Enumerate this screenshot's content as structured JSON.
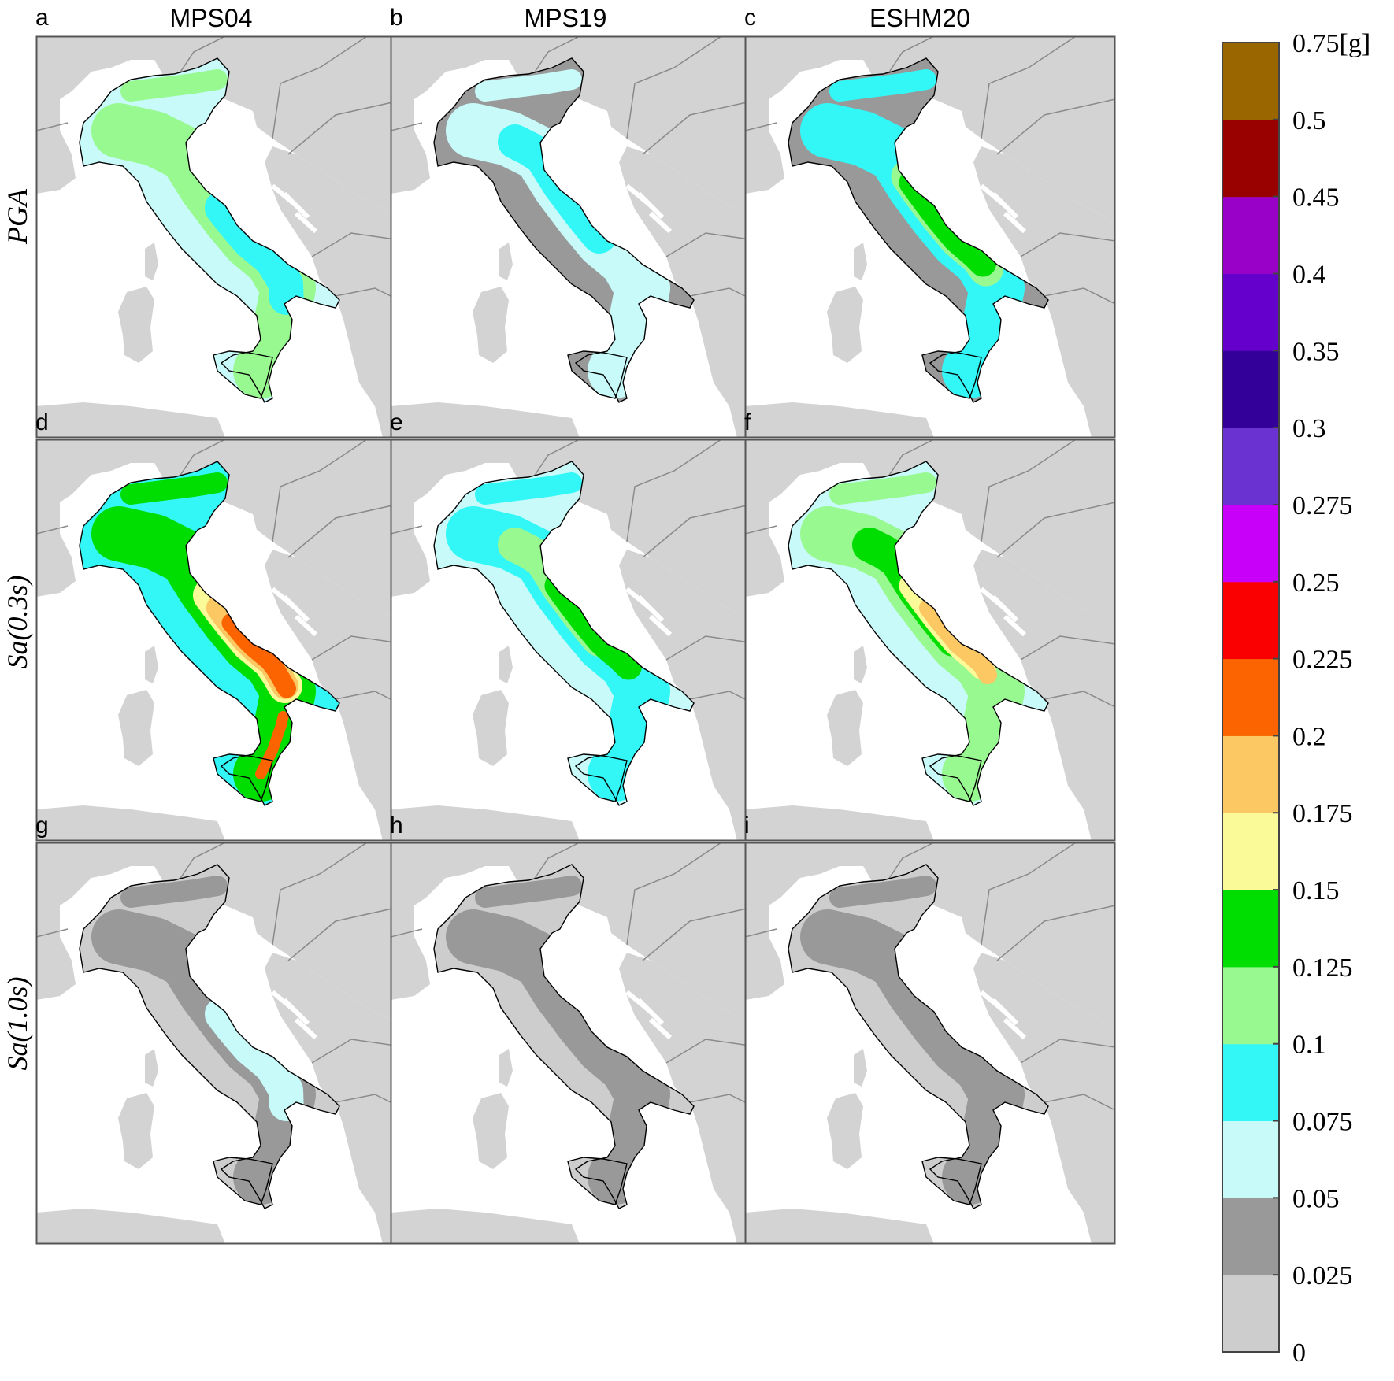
{
  "columns": [
    {
      "letter_row1": "a",
      "title": "MPS04"
    },
    {
      "letter_row1": "b",
      "title": "MPS19"
    },
    {
      "letter_row1": "c",
      "title": "ESHM20"
    }
  ],
  "rows": [
    {
      "label": "PGA",
      "letters": [
        "a",
        "b",
        "c"
      ]
    },
    {
      "label": "Sa(0.3s)",
      "letters": [
        "d",
        "e",
        "f"
      ]
    },
    {
      "label": "Sa(1.0s)",
      "letters": [
        "g",
        "h",
        "i"
      ]
    }
  ],
  "colorbar": {
    "unit": "[g]",
    "ticks": [
      "0",
      "0.025",
      "0.05",
      "0.075",
      "0.1",
      "0.125",
      "0.15",
      "0.175",
      "0.2",
      "0.225",
      "0.25",
      "0.275",
      "0.3",
      "0.35",
      "0.4",
      "0.45",
      "0.5",
      "0.75"
    ],
    "bins": [
      {
        "range": "0-0.025",
        "color": "#cdcdcd"
      },
      {
        "range": "0.025-0.05",
        "color": "#999999"
      },
      {
        "range": "0.05-0.075",
        "color": "#c8fafa"
      },
      {
        "range": "0.075-0.1",
        "color": "#33f7f7"
      },
      {
        "range": "0.1-0.125",
        "color": "#99f991"
      },
      {
        "range": "0.125-0.15",
        "color": "#00dd00"
      },
      {
        "range": "0.15-0.175",
        "color": "#fbfa99"
      },
      {
        "range": "0.175-0.2",
        "color": "#fbc864"
      },
      {
        "range": "0.2-0.225",
        "color": "#fb6400"
      },
      {
        "range": "0.225-0.25",
        "color": "#fb0000"
      },
      {
        "range": "0.25-0.275",
        "color": "#c900f9"
      },
      {
        "range": "0.275-0.3",
        "color": "#6a33d1"
      },
      {
        "range": "0.3-0.35",
        "color": "#330099"
      },
      {
        "range": "0.35-0.4",
        "color": "#6500cc"
      },
      {
        "range": "0.4-0.45",
        "color": "#9900c8"
      },
      {
        "range": "0.45-0.5",
        "color": "#990000"
      },
      {
        "range": "0.5-0.75",
        "color": "#996600"
      }
    ]
  },
  "maps": [
    {
      "id": "a",
      "coastal_class": 2,
      "core_class": 4,
      "peaks": [
        {
          "cls": 3,
          "t": 0.55
        }
      ]
    },
    {
      "id": "b",
      "coastal_class": 1,
      "core_class": 2,
      "peaks": [
        {
          "cls": 3,
          "t": 0.3
        }
      ]
    },
    {
      "id": "c",
      "coastal_class": 1,
      "core_class": 3,
      "peaks": [
        {
          "cls": 4,
          "t": 0.45
        },
        {
          "cls": 5,
          "t": 0.45
        }
      ]
    },
    {
      "id": "d",
      "coastal_class": 3,
      "core_class": 5,
      "peaks": [
        {
          "cls": 6,
          "t": 0.5
        },
        {
          "cls": 7,
          "t": 0.52
        },
        {
          "cls": 8,
          "t": 0.55
        },
        {
          "cls": 8,
          "t": 0.9
        }
      ]
    },
    {
      "id": "e",
      "coastal_class": 2,
      "core_class": 3,
      "peaks": [
        {
          "cls": 4,
          "t": 0.3
        },
        {
          "cls": 5,
          "t": 0.45
        }
      ]
    },
    {
      "id": "f",
      "coastal_class": 2,
      "core_class": 4,
      "peaks": [
        {
          "cls": 5,
          "t": 0.3
        },
        {
          "cls": 6,
          "t": 0.45
        },
        {
          "cls": 7,
          "t": 0.5
        }
      ]
    },
    {
      "id": "g",
      "coastal_class": 0,
      "core_class": 1,
      "peaks": [
        {
          "cls": 2,
          "t": 0.55
        }
      ]
    },
    {
      "id": "h",
      "coastal_class": 0,
      "core_class": 1,
      "peaks": []
    },
    {
      "id": "i",
      "coastal_class": 0,
      "core_class": 1,
      "peaks": []
    }
  ]
}
